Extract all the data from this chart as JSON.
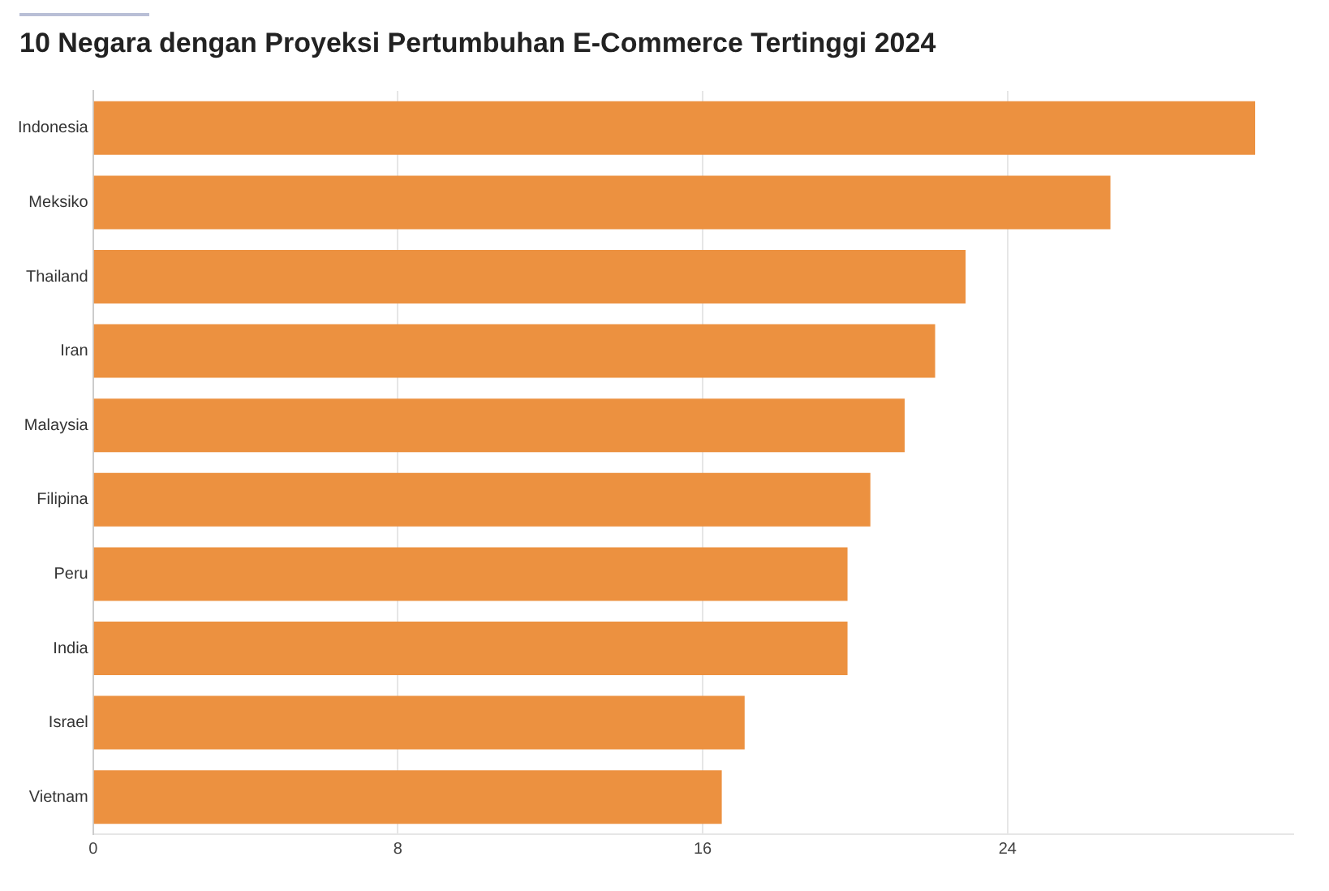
{
  "chart_data": {
    "type": "bar",
    "orientation": "horizontal",
    "title": "10 Negara dengan Proyeksi Pertumbuhan E-Commerce Tertinggi 2024",
    "categories": [
      "Indonesia",
      "Meksiko",
      "Thailand",
      "Iran",
      "Malaysia",
      "Filipina",
      "Peru",
      "India",
      "Israel",
      "Vietnam"
    ],
    "values": [
      30.5,
      26.7,
      22.9,
      22.1,
      21.3,
      20.4,
      19.8,
      19.8,
      17.1,
      16.5
    ],
    "color": "#ec9140",
    "xlim": [
      0,
      31.5
    ],
    "xticks": [
      0,
      8,
      16,
      24
    ],
    "grid": "x",
    "legend": false
  }
}
